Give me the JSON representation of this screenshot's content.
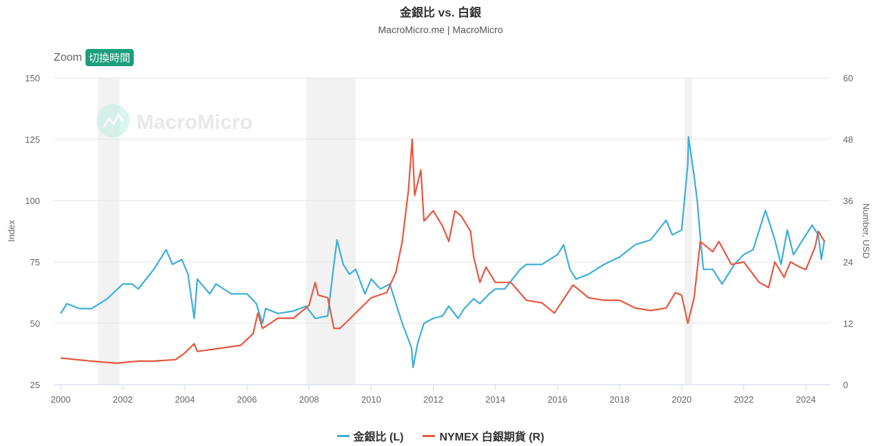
{
  "chart_data": {
    "type": "line",
    "title": "金銀比 vs. 白銀",
    "subtitle": "MacroMicro.me | MacroMicro",
    "watermark": "MacroMicro",
    "zoom_label": "Zoom",
    "zoom_button": "切換時間",
    "xlabel": "",
    "ylabel_left": "Index",
    "ylabel_right": "Number, USD",
    "xlim": [
      2000,
      2024.8
    ],
    "ylim_left": [
      25,
      150
    ],
    "ylim_right": [
      0,
      60
    ],
    "x_ticks": [
      "2000",
      "2002",
      "2004",
      "2006",
      "2008",
      "2010",
      "2012",
      "2014",
      "2016",
      "2018",
      "2020",
      "2022",
      "2024"
    ],
    "y_ticks_left": [
      "25",
      "50",
      "75",
      "100",
      "125",
      "150"
    ],
    "y_ticks_right": [
      "0",
      "12",
      "24",
      "36",
      "48",
      "60"
    ],
    "grid": true,
    "legend_position": "bottom",
    "recession_bands": [
      [
        2001.2,
        2001.9
      ],
      [
        2007.9,
        2009.5
      ],
      [
        2020.1,
        2020.35
      ]
    ],
    "series": [
      {
        "name": "金銀比 (L)",
        "axis": "left",
        "color": "#3aaed8",
        "points": [
          [
            2000.0,
            54
          ],
          [
            2000.2,
            58
          ],
          [
            2000.6,
            56
          ],
          [
            2001.0,
            56
          ],
          [
            2001.5,
            60
          ],
          [
            2002.0,
            66
          ],
          [
            2002.3,
            66
          ],
          [
            2002.5,
            64
          ],
          [
            2003.0,
            72
          ],
          [
            2003.4,
            80
          ],
          [
            2003.6,
            74
          ],
          [
            2003.9,
            76
          ],
          [
            2004.1,
            70
          ],
          [
            2004.3,
            52
          ],
          [
            2004.4,
            68
          ],
          [
            2004.8,
            62
          ],
          [
            2005.0,
            66
          ],
          [
            2005.5,
            62
          ],
          [
            2006.0,
            62
          ],
          [
            2006.3,
            58
          ],
          [
            2006.5,
            50
          ],
          [
            2006.6,
            56
          ],
          [
            2007.0,
            54
          ],
          [
            2007.5,
            55
          ],
          [
            2007.9,
            57
          ],
          [
            2008.2,
            52
          ],
          [
            2008.6,
            53
          ],
          [
            2008.8,
            74
          ],
          [
            2008.9,
            84
          ],
          [
            2009.1,
            74
          ],
          [
            2009.3,
            70
          ],
          [
            2009.5,
            72
          ],
          [
            2009.8,
            62
          ],
          [
            2010.0,
            68
          ],
          [
            2010.3,
            64
          ],
          [
            2010.6,
            66
          ],
          [
            2010.8,
            58
          ],
          [
            2011.0,
            50
          ],
          [
            2011.3,
            40
          ],
          [
            2011.35,
            32
          ],
          [
            2011.5,
            42
          ],
          [
            2011.7,
            50
          ],
          [
            2012.0,
            52
          ],
          [
            2012.3,
            53
          ],
          [
            2012.5,
            57
          ],
          [
            2012.8,
            52
          ],
          [
            2013.0,
            56
          ],
          [
            2013.3,
            60
          ],
          [
            2013.5,
            58
          ],
          [
            2013.8,
            62
          ],
          [
            2014.0,
            64
          ],
          [
            2014.3,
            64
          ],
          [
            2014.8,
            72
          ],
          [
            2015.0,
            74
          ],
          [
            2015.5,
            74
          ],
          [
            2016.0,
            78
          ],
          [
            2016.2,
            82
          ],
          [
            2016.4,
            72
          ],
          [
            2016.6,
            68
          ],
          [
            2017.0,
            70
          ],
          [
            2017.5,
            74
          ],
          [
            2018.0,
            77
          ],
          [
            2018.5,
            82
          ],
          [
            2019.0,
            84
          ],
          [
            2019.5,
            92
          ],
          [
            2019.7,
            86
          ],
          [
            2020.0,
            88
          ],
          [
            2020.2,
            115
          ],
          [
            2020.22,
            126
          ],
          [
            2020.4,
            110
          ],
          [
            2020.5,
            100
          ],
          [
            2020.6,
            85
          ],
          [
            2020.7,
            72
          ],
          [
            2021.0,
            72
          ],
          [
            2021.3,
            66
          ],
          [
            2021.7,
            74
          ],
          [
            2022.0,
            78
          ],
          [
            2022.3,
            80
          ],
          [
            2022.6,
            92
          ],
          [
            2022.7,
            96
          ],
          [
            2023.0,
            84
          ],
          [
            2023.2,
            74
          ],
          [
            2023.4,
            88
          ],
          [
            2023.6,
            78
          ],
          [
            2024.0,
            86
          ],
          [
            2024.2,
            90
          ],
          [
            2024.4,
            86
          ],
          [
            2024.5,
            76
          ],
          [
            2024.6,
            84
          ]
        ]
      },
      {
        "name": "NYMEX 白銀期貨 (R)",
        "axis": "right",
        "color": "#e8553e",
        "points": [
          [
            2000.0,
            5.2
          ],
          [
            2001.0,
            4.6
          ],
          [
            2001.8,
            4.2
          ],
          [
            2002.5,
            4.6
          ],
          [
            2003.0,
            4.6
          ],
          [
            2003.7,
            4.9
          ],
          [
            2004.0,
            6.2
          ],
          [
            2004.3,
            8.0
          ],
          [
            2004.4,
            6.5
          ],
          [
            2005.0,
            7.0
          ],
          [
            2005.8,
            7.7
          ],
          [
            2006.2,
            10
          ],
          [
            2006.35,
            14
          ],
          [
            2006.5,
            11
          ],
          [
            2007.0,
            13
          ],
          [
            2007.5,
            13
          ],
          [
            2008.0,
            15.5
          ],
          [
            2008.2,
            20
          ],
          [
            2008.3,
            17.5
          ],
          [
            2008.6,
            17
          ],
          [
            2008.8,
            11
          ],
          [
            2009.0,
            11
          ],
          [
            2009.5,
            14
          ],
          [
            2010.0,
            17
          ],
          [
            2010.5,
            18
          ],
          [
            2010.8,
            22
          ],
          [
            2011.0,
            28
          ],
          [
            2011.2,
            38
          ],
          [
            2011.32,
            48
          ],
          [
            2011.4,
            37
          ],
          [
            2011.6,
            42
          ],
          [
            2011.7,
            32
          ],
          [
            2012.0,
            34
          ],
          [
            2012.3,
            31
          ],
          [
            2012.5,
            28
          ],
          [
            2012.7,
            34
          ],
          [
            2012.9,
            33
          ],
          [
            2013.2,
            30
          ],
          [
            2013.3,
            25
          ],
          [
            2013.5,
            20
          ],
          [
            2013.7,
            23
          ],
          [
            2014.0,
            20
          ],
          [
            2014.5,
            20
          ],
          [
            2015.0,
            16.5
          ],
          [
            2015.5,
            16
          ],
          [
            2015.9,
            14
          ],
          [
            2016.5,
            19.5
          ],
          [
            2017.0,
            17
          ],
          [
            2017.5,
            16.5
          ],
          [
            2018.0,
            16.5
          ],
          [
            2018.5,
            15
          ],
          [
            2019.0,
            14.5
          ],
          [
            2019.5,
            15
          ],
          [
            2019.8,
            18
          ],
          [
            2020.0,
            17.5
          ],
          [
            2020.2,
            12
          ],
          [
            2020.4,
            17
          ],
          [
            2020.6,
            28
          ],
          [
            2021.0,
            26
          ],
          [
            2021.2,
            28
          ],
          [
            2021.6,
            23.5
          ],
          [
            2022.0,
            24
          ],
          [
            2022.5,
            20
          ],
          [
            2022.8,
            19
          ],
          [
            2023.0,
            24
          ],
          [
            2023.3,
            21
          ],
          [
            2023.5,
            24
          ],
          [
            2023.8,
            23
          ],
          [
            2024.0,
            22.5
          ],
          [
            2024.3,
            27
          ],
          [
            2024.4,
            30
          ],
          [
            2024.6,
            28
          ]
        ]
      }
    ]
  }
}
